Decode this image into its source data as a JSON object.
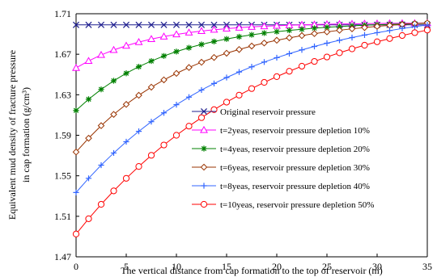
{
  "chart_data": {
    "type": "line",
    "title": "",
    "xlabel": "The vertical distance from cap formation to the top of reservoir (m)",
    "ylabel_lines": [
      "Equivalent mud density of fracture pressure",
      "in cap formation (g/cm³)"
    ],
    "xlim": [
      0,
      35
    ],
    "ylim": [
      1.47,
      1.71
    ],
    "xticks": [
      "0",
      "5",
      "10",
      "15",
      "20",
      "25",
      "30",
      "35"
    ],
    "xtick_values": [
      0,
      5,
      10,
      15,
      20,
      25,
      30,
      35
    ],
    "yticks": [
      "1.47",
      "1.51",
      "1.55",
      "1.59",
      "1.63",
      "1.67",
      "1.71"
    ],
    "ytick_values": [
      1.47,
      1.51,
      1.55,
      1.59,
      1.63,
      1.67,
      1.71
    ],
    "grid": false,
    "legend_position": "lower-right",
    "series": [
      {
        "name": "Original reservoir pressure",
        "marker": "x",
        "color": "#1f1f8f",
        "x": [
          0,
          1.25,
          2.5,
          3.75,
          5,
          6.25,
          7.5,
          8.75,
          10,
          11.25,
          12.5,
          13.75,
          15,
          16.25,
          17.5,
          18.75,
          20,
          21.25,
          22.5,
          23.75,
          25,
          26.25,
          27.5,
          28.75,
          30,
          31.25,
          32.5,
          33.75,
          35
        ],
        "y": [
          1.699,
          1.699,
          1.699,
          1.699,
          1.699,
          1.699,
          1.699,
          1.699,
          1.699,
          1.699,
          1.699,
          1.699,
          1.699,
          1.699,
          1.699,
          1.699,
          1.699,
          1.699,
          1.699,
          1.699,
          1.699,
          1.699,
          1.699,
          1.699,
          1.699,
          1.699,
          1.699,
          1.699,
          1.699
        ]
      },
      {
        "name": "t=2yeas, reservoir pressure depletion 10%",
        "marker": "triangle",
        "color": "#ff00ff",
        "x": [
          0,
          1.25,
          2.5,
          3.75,
          5,
          6.25,
          7.5,
          8.75,
          10,
          11.25,
          12.5,
          13.75,
          15,
          16.25,
          17.5,
          18.75,
          20,
          21.25,
          22.5,
          23.75,
          25,
          26.25,
          27.5,
          28.75,
          30,
          31.25,
          32.5,
          33.75,
          35
        ],
        "y": [
          1.6565,
          1.6634,
          1.6693,
          1.6742,
          1.6784,
          1.682,
          1.685,
          1.6875,
          1.6896,
          1.6914,
          1.6929,
          1.6942,
          1.6953,
          1.6962,
          1.697,
          1.6976,
          1.6981,
          1.6986,
          1.699,
          1.6993,
          1.6996,
          1.6998,
          1.7,
          1.7002,
          1.7003,
          1.7005,
          1.7006,
          1.7006,
          1.7007
        ]
      },
      {
        "name": "t=4yeas, reservoir pressure depletion 20%",
        "marker": "asterisk",
        "color": "#008000",
        "x": [
          0,
          1.25,
          2.5,
          3.75,
          5,
          6.25,
          7.5,
          8.75,
          10,
          11.25,
          12.5,
          13.75,
          15,
          16.25,
          17.5,
          18.75,
          20,
          21.25,
          22.5,
          23.75,
          25,
          26.25,
          27.5,
          28.75,
          30,
          31.25,
          32.5,
          33.75,
          35
        ],
        "y": [
          1.6145,
          1.6256,
          1.6353,
          1.6438,
          1.6512,
          1.6577,
          1.6633,
          1.6683,
          1.6726,
          1.6764,
          1.6797,
          1.6826,
          1.6851,
          1.6873,
          1.6892,
          1.6909,
          1.6923,
          1.6936,
          1.6947,
          1.6957,
          1.6966,
          1.6973,
          1.698,
          1.6986,
          1.6991,
          1.6995,
          1.6999,
          1.7002,
          1.7005
        ]
      },
      {
        "name": "t=6yeas, reservoir pressure depletion 30%",
        "marker": "diamond",
        "color": "#993300",
        "x": [
          0,
          1.25,
          2.5,
          3.75,
          5,
          6.25,
          7.5,
          8.75,
          10,
          11.25,
          12.5,
          13.75,
          15,
          16.25,
          17.5,
          18.75,
          20,
          21.25,
          22.5,
          23.75,
          25,
          26.25,
          27.5,
          28.75,
          30,
          31.25,
          32.5,
          33.75,
          35
        ],
        "y": [
          1.5735,
          1.5871,
          1.5995,
          1.6106,
          1.6205,
          1.6295,
          1.6375,
          1.6447,
          1.6511,
          1.6569,
          1.6621,
          1.6668,
          1.671,
          1.6747,
          1.6781,
          1.6811,
          1.6838,
          1.6862,
          1.6884,
          1.6904,
          1.6921,
          1.6937,
          1.6951,
          1.6963,
          1.6975,
          1.6985,
          1.6994,
          1.7002,
          1.7009
        ]
      },
      {
        "name": "t=8yeas, reservoir pressure depletion 40%",
        "marker": "plus",
        "color": "#3366ff",
        "x": [
          0,
          1.25,
          2.5,
          3.75,
          5,
          6.25,
          7.5,
          8.75,
          10,
          11.25,
          12.5,
          13.75,
          15,
          16.25,
          17.5,
          18.75,
          20,
          21.25,
          22.5,
          23.75,
          25,
          26.25,
          27.5,
          28.75,
          30,
          31.25,
          32.5,
          33.75,
          35
        ],
        "y": [
          1.5335,
          1.5475,
          1.5605,
          1.5725,
          1.5836,
          1.5939,
          1.6034,
          1.6121,
          1.6202,
          1.6277,
          1.6347,
          1.6411,
          1.647,
          1.6525,
          1.6576,
          1.6623,
          1.6666,
          1.6706,
          1.6743,
          1.6777,
          1.6809,
          1.6838,
          1.6865,
          1.689,
          1.6913,
          1.6934,
          1.6954,
          1.6972,
          1.6989
        ]
      },
      {
        "name": "t=10yeas, reservoir pressure depletion 50%",
        "marker": "circle",
        "color": "#ff0000",
        "x": [
          0,
          1.25,
          2.5,
          3.75,
          5,
          6.25,
          7.5,
          8.75,
          10,
          11.25,
          12.5,
          13.75,
          15,
          16.25,
          17.5,
          18.75,
          20,
          21.25,
          22.5,
          23.75,
          25,
          26.25,
          27.5,
          28.75,
          30,
          31.25,
          32.5,
          33.75,
          35
        ],
        "y": [
          1.4925,
          1.5076,
          1.5218,
          1.5351,
          1.5475,
          1.5592,
          1.5702,
          1.5804,
          1.59,
          1.599,
          1.6074,
          1.6153,
          1.6227,
          1.6296,
          1.6361,
          1.6422,
          1.6479,
          1.6532,
          1.6582,
          1.6629,
          1.6673,
          1.6714,
          1.6753,
          1.6789,
          1.6823,
          1.6855,
          1.6885,
          1.6913,
          1.6939
        ]
      }
    ]
  }
}
